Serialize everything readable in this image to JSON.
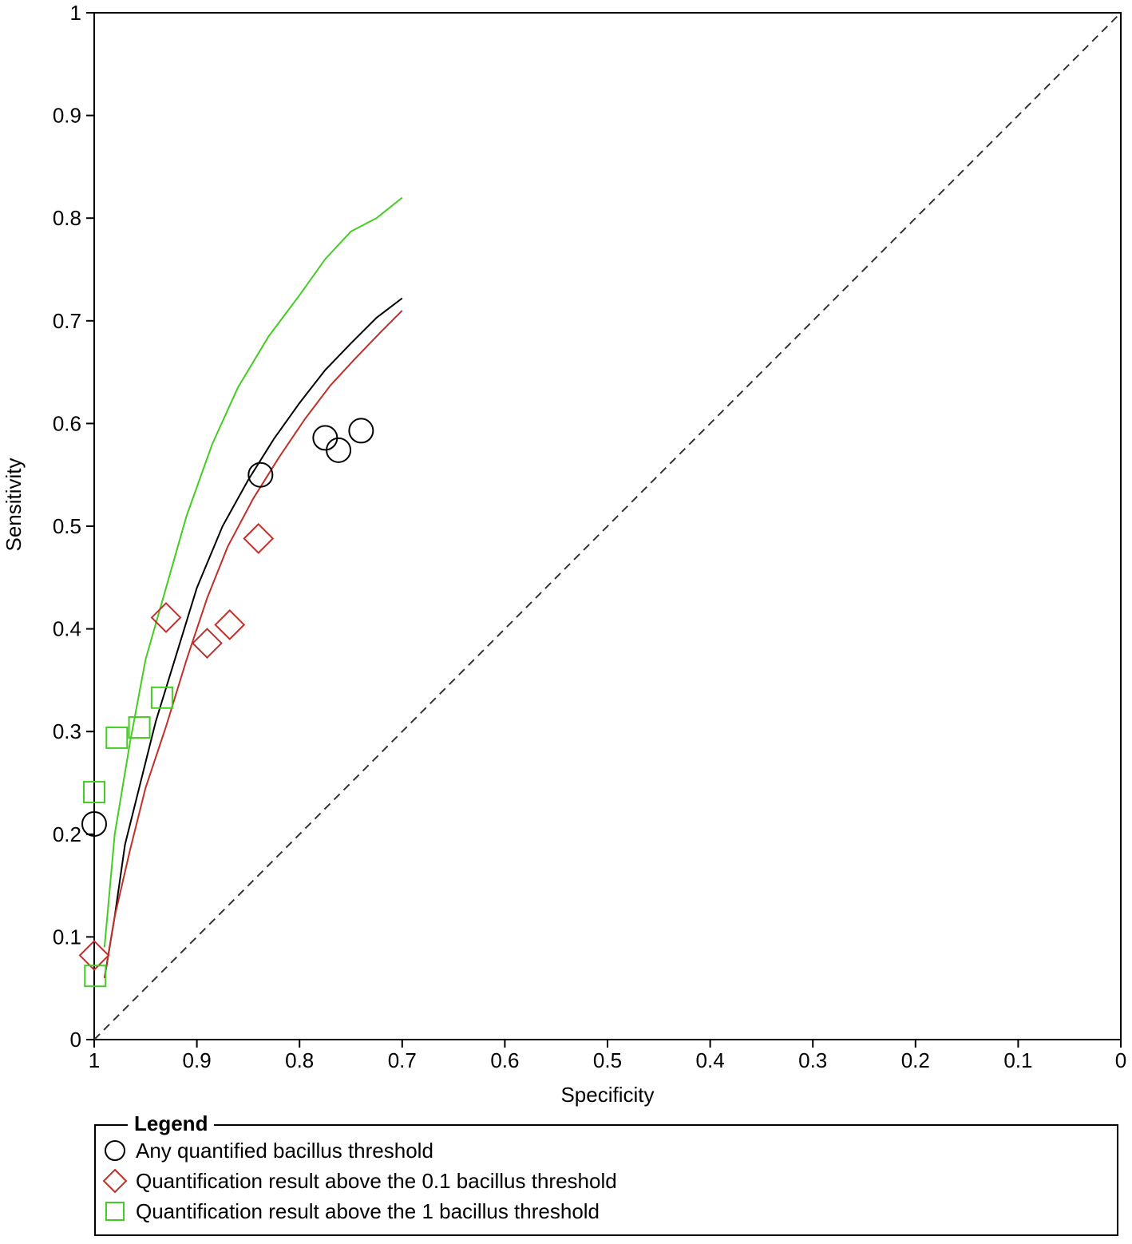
{
  "chart_data": {
    "type": "scatter",
    "xlabel": "Specificity",
    "ylabel": "Sensitivity",
    "xlim": [
      1,
      0
    ],
    "ylim": [
      0,
      1
    ],
    "x_reversed": true,
    "x_ticks": [
      "1",
      "0.9",
      "0.8",
      "0.7",
      "0.6",
      "0.5",
      "0.4",
      "0.3",
      "0.2",
      "0.1",
      "0"
    ],
    "y_ticks": [
      "0",
      "0.1",
      "0.2",
      "0.3",
      "0.4",
      "0.5",
      "0.6",
      "0.7",
      "0.8",
      "0.9",
      "1"
    ],
    "diagonal_reference": true,
    "legend_placement": "bottom",
    "series": [
      {
        "name": "Any quantified bacillus threshold",
        "marker": "circle",
        "color": "#000000",
        "points": [
          [
            1.0,
            0.21
          ],
          [
            0.838,
            0.55
          ],
          [
            0.775,
            0.586
          ],
          [
            0.762,
            0.574
          ],
          [
            0.74,
            0.593
          ]
        ],
        "curve": [
          [
            0.99,
            0.06
          ],
          [
            0.98,
            0.12
          ],
          [
            0.97,
            0.19
          ],
          [
            0.955,
            0.25
          ],
          [
            0.94,
            0.31
          ],
          [
            0.92,
            0.375
          ],
          [
            0.9,
            0.44
          ],
          [
            0.875,
            0.5
          ],
          [
            0.85,
            0.545
          ],
          [
            0.825,
            0.585
          ],
          [
            0.8,
            0.62
          ],
          [
            0.775,
            0.652
          ],
          [
            0.75,
            0.678
          ],
          [
            0.725,
            0.703
          ],
          [
            0.7,
            0.722
          ]
        ]
      },
      {
        "name": "Quantification result above the 0.1 bacillus threshold",
        "marker": "diamond",
        "color": "#c0302a",
        "points": [
          [
            1.0,
            0.082
          ],
          [
            0.93,
            0.411
          ],
          [
            0.89,
            0.386
          ],
          [
            0.868,
            0.404
          ],
          [
            0.84,
            0.488
          ]
        ],
        "curve": [
          [
            0.99,
            0.06
          ],
          [
            0.98,
            0.12
          ],
          [
            0.965,
            0.185
          ],
          [
            0.95,
            0.245
          ],
          [
            0.93,
            0.305
          ],
          [
            0.91,
            0.37
          ],
          [
            0.89,
            0.43
          ],
          [
            0.87,
            0.48
          ],
          [
            0.845,
            0.527
          ],
          [
            0.82,
            0.567
          ],
          [
            0.795,
            0.604
          ],
          [
            0.77,
            0.637
          ],
          [
            0.745,
            0.664
          ],
          [
            0.72,
            0.69
          ],
          [
            0.7,
            0.71
          ]
        ]
      },
      {
        "name": "Quantification result above the 1 bacillus threshold",
        "marker": "square",
        "color": "#44cc22",
        "points": [
          [
            1.0,
            0.241
          ],
          [
            0.999,
            0.062
          ],
          [
            0.978,
            0.294
          ],
          [
            0.956,
            0.304
          ],
          [
            0.934,
            0.333
          ]
        ],
        "curve": [
          [
            0.99,
            0.09
          ],
          [
            0.98,
            0.2
          ],
          [
            0.965,
            0.29
          ],
          [
            0.95,
            0.37
          ],
          [
            0.93,
            0.44
          ],
          [
            0.91,
            0.51
          ],
          [
            0.885,
            0.58
          ],
          [
            0.86,
            0.635
          ],
          [
            0.83,
            0.685
          ],
          [
            0.8,
            0.725
          ],
          [
            0.775,
            0.76
          ],
          [
            0.75,
            0.787
          ],
          [
            0.725,
            0.8
          ],
          [
            0.7,
            0.82
          ]
        ]
      }
    ]
  },
  "legend": {
    "title": "Legend",
    "items": [
      "Any quantified bacillus threshold",
      "Quantification result above the 0.1 bacillus threshold",
      "Quantification result above the 1 bacillus threshold"
    ]
  }
}
